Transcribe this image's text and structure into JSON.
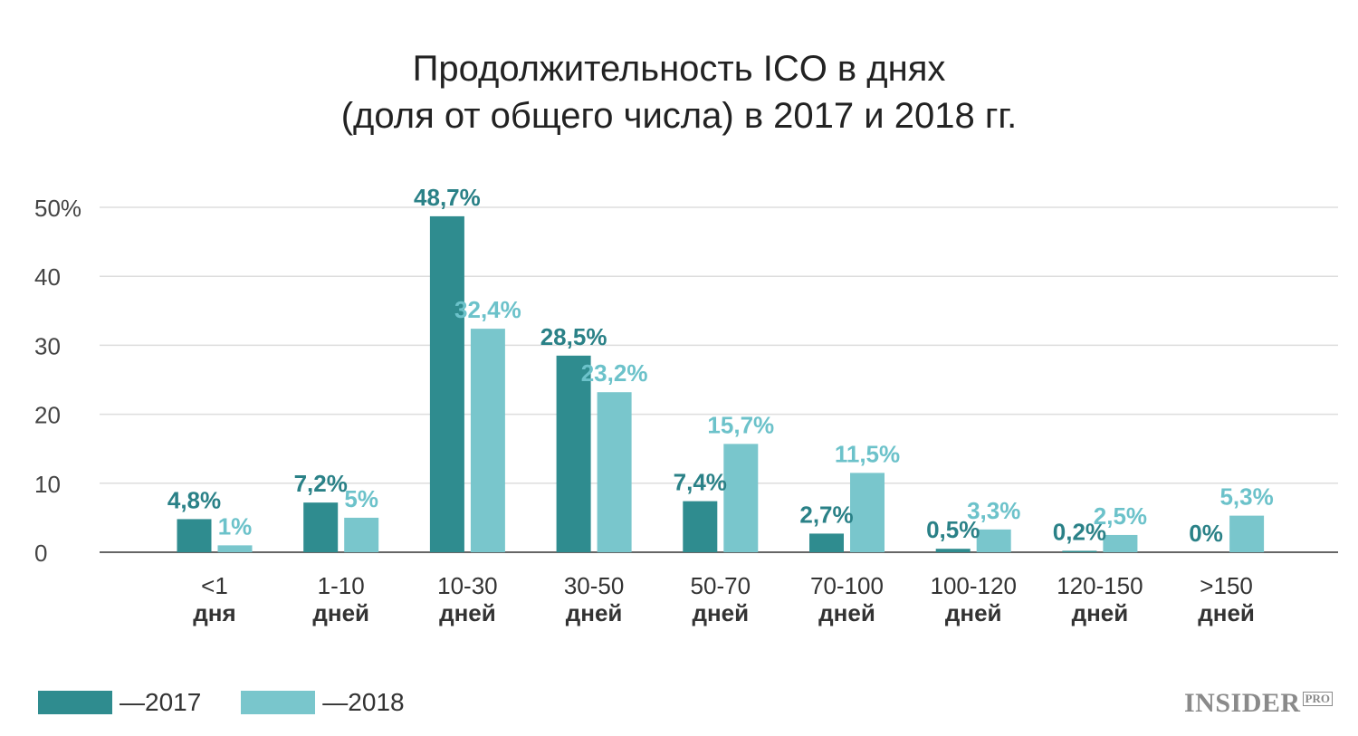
{
  "title_line1": "Продолжительность ICO в днях",
  "title_line2": "(доля от общего числа) в 2017 и 2018 гг.",
  "logo": {
    "main": "INSIDER",
    "sub": "PRO"
  },
  "colors": {
    "s2017": "#2f8c8f",
    "s2018": "#79c6cc",
    "label2017": "#2a8187",
    "label2018": "#6cc2ca",
    "grid": "#dddddd",
    "axis": "#666666",
    "tick": "#444444"
  },
  "chart_data": {
    "type": "bar",
    "title": "Продолжительность ICO в днях (доля от общего числа) в 2017 и 2018 гг.",
    "categories": [
      [
        "<1",
        "дня"
      ],
      [
        "1-10",
        "дней"
      ],
      [
        "10-30",
        "дней"
      ],
      [
        "30-50",
        "дней"
      ],
      [
        "50-70",
        "дней"
      ],
      [
        "70-100",
        "дней"
      ],
      [
        "100-120",
        "дней"
      ],
      [
        "120-150",
        "дней"
      ],
      [
        ">150",
        "дней"
      ]
    ],
    "series": [
      {
        "name": "—2017",
        "values": [
          4.8,
          7.2,
          48.7,
          28.5,
          7.4,
          2.7,
          0.5,
          0.2,
          0
        ],
        "labels": [
          "4,8%",
          "7,2%",
          "48,7%",
          "28,5%",
          "7,4%",
          "2,7%",
          "0,5%",
          "0,2%",
          "0%"
        ]
      },
      {
        "name": "—2018",
        "values": [
          1,
          5,
          32.4,
          23.2,
          15.7,
          11.5,
          3.3,
          2.5,
          5.3
        ],
        "labels": [
          "1%",
          "5%",
          "32,4%",
          "23,2%",
          "15,7%",
          "11,5%",
          "3,3%",
          "2,5%",
          "5,3%"
        ]
      }
    ],
    "yticks": [
      "0",
      "10",
      "20",
      "30",
      "40",
      "50%"
    ],
    "ytick_values": [
      0,
      10,
      20,
      30,
      40,
      50
    ],
    "ylim": [
      0,
      50
    ],
    "grid": true,
    "legend": "bottom-left"
  }
}
